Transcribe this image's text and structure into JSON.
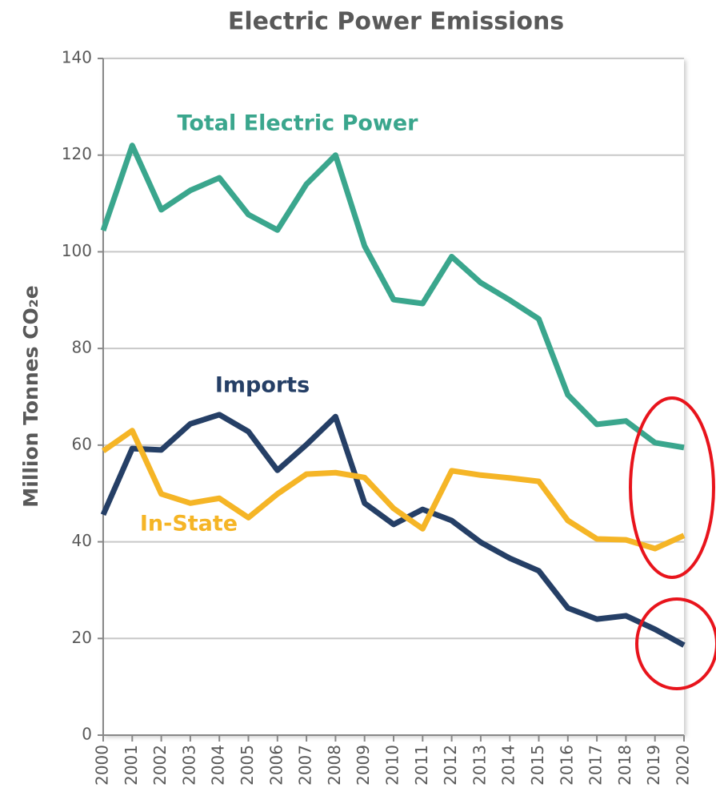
{
  "chart_data": {
    "type": "line",
    "title": "Electric Power Emissions",
    "y_label": "Million Tonnes CO₂e",
    "x": [
      2000,
      2001,
      2002,
      2003,
      2004,
      2005,
      2006,
      2007,
      2008,
      2009,
      2010,
      2011,
      2012,
      2013,
      2014,
      2015,
      2016,
      2017,
      2018,
      2019,
      2020
    ],
    "xlim": [
      2000,
      2020
    ],
    "xticks": [
      2000,
      2001,
      2002,
      2003,
      2004,
      2005,
      2006,
      2007,
      2008,
      2009,
      2010,
      2011,
      2012,
      2013,
      2014,
      2015,
      2016,
      2017,
      2018,
      2019,
      2020
    ],
    "ylim": [
      0,
      140
    ],
    "yticks": [
      0,
      20,
      40,
      60,
      80,
      100,
      120,
      140
    ],
    "grid": true,
    "series": [
      {
        "name": "Total Electric Power",
        "color": "#3aa68d",
        "values": [
          104.4,
          122,
          108.7,
          112.7,
          115.3,
          107.7,
          104.5,
          114,
          120,
          101.2,
          90.1,
          89.3,
          99,
          93.6,
          90,
          86.1,
          70.4,
          64.3,
          65,
          60.5,
          59.5
        ]
      },
      {
        "name": "Imports",
        "color": "#253f66",
        "values": [
          45.6,
          59.3,
          59,
          64.4,
          66.3,
          62.8,
          54.8,
          60.1,
          65.9,
          48,
          43.6,
          46.7,
          44.4,
          39.9,
          36.6,
          34,
          26.3,
          24,
          24.7,
          21.9,
          18.6
        ]
      },
      {
        "name": "In-State",
        "color": "#f5b526",
        "values": [
          58.8,
          63,
          49.9,
          48,
          49,
          45,
          49.9,
          54,
          54.3,
          53.3,
          46.9,
          42.7,
          54.7,
          53.8,
          53.2,
          52.5,
          44.4,
          40.6,
          40.4,
          38.6,
          41.3
        ]
      }
    ]
  }
}
